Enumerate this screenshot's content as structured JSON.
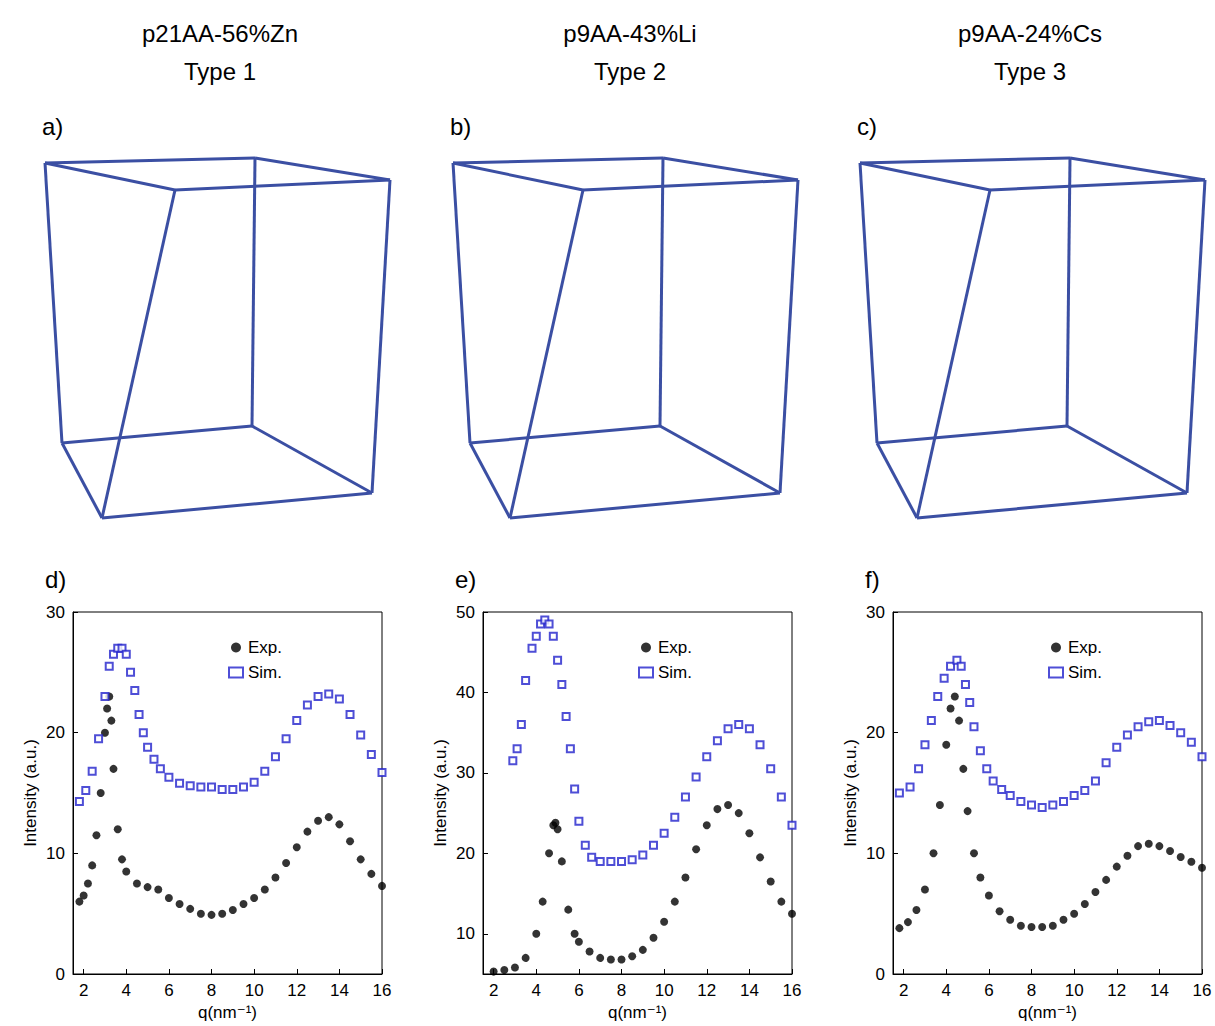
{
  "panels": [
    {
      "label": "a)",
      "title": "p21AA-56%Zn",
      "subtitle": "Type 1"
    },
    {
      "label": "b)",
      "title": "p9AA-43%Li",
      "subtitle": "Type 2"
    },
    {
      "label": "c)",
      "title": "p9AA-24%Cs",
      "subtitle": "Type 3"
    }
  ],
  "chart_data": [
    {
      "type": "scatter",
      "panel": "d)",
      "xlabel": "q(nm⁻¹)",
      "ylabel": "Intensity (a.u.)",
      "xlim": [
        1.5,
        16
      ],
      "xticks": [
        2,
        4,
        6,
        8,
        10,
        12,
        14,
        16
      ],
      "ylim": [
        0,
        30
      ],
      "yticks": [
        0,
        10,
        20,
        30
      ],
      "legend": "top right",
      "series": [
        {
          "name": "Exp.",
          "color": "#000000",
          "marker": "filled circle",
          "x": [
            1.8,
            2.0,
            2.2,
            2.4,
            2.6,
            2.8,
            3.0,
            3.1,
            3.2,
            3.3,
            3.4,
            3.6,
            3.8,
            4.0,
            4.5,
            5.0,
            5.5,
            6.0,
            6.5,
            7.0,
            7.5,
            8.0,
            8.5,
            9.0,
            9.5,
            10,
            10.5,
            11,
            11.5,
            12,
            12.5,
            13,
            13.5,
            14,
            14.5,
            15,
            15.5,
            16
          ],
          "values": [
            6.0,
            6.5,
            7.5,
            9.0,
            11.5,
            15,
            20,
            22,
            23,
            21,
            17,
            12,
            9.5,
            8.5,
            7.5,
            7.2,
            7.0,
            6.3,
            5.8,
            5.4,
            5.0,
            4.9,
            5.0,
            5.3,
            5.8,
            6.3,
            7.0,
            8.0,
            9.2,
            10.5,
            11.8,
            12.7,
            13.0,
            12.4,
            11.0,
            9.5,
            8.3,
            7.3
          ]
        },
        {
          "name": "Sim.",
          "color": "#2222cc",
          "marker": "open square",
          "x": [
            1.8,
            2.1,
            2.4,
            2.7,
            3.0,
            3.2,
            3.4,
            3.6,
            3.8,
            4.0,
            4.2,
            4.4,
            4.6,
            4.8,
            5.0,
            5.3,
            5.6,
            6.0,
            6.5,
            7,
            7.5,
            8,
            8.5,
            9,
            9.5,
            10,
            10.5,
            11,
            11.5,
            12,
            12.5,
            13,
            13.5,
            14,
            14.5,
            15,
            15.5,
            16
          ],
          "values": [
            14.3,
            15.2,
            16.8,
            19.5,
            23,
            25.5,
            26.5,
            27,
            27,
            26.5,
            25,
            23.5,
            21.5,
            20,
            18.8,
            17.8,
            17,
            16.3,
            15.8,
            15.6,
            15.5,
            15.5,
            15.3,
            15.3,
            15.5,
            15.9,
            16.8,
            18,
            19.5,
            21,
            22.3,
            23,
            23.2,
            22.8,
            21.5,
            19.8,
            18.2,
            16.7
          ]
        }
      ]
    },
    {
      "type": "scatter",
      "panel": "e)",
      "xlabel": "q(nm⁻¹)",
      "ylabel": "Intensity (a.u.)",
      "xlim": [
        1.5,
        16
      ],
      "xticks": [
        2,
        4,
        6,
        8,
        10,
        12,
        14,
        16
      ],
      "ylim": [
        5,
        50
      ],
      "yticks": [
        10,
        20,
        30,
        40,
        50
      ],
      "legend": "top right",
      "series": [
        {
          "name": "Exp.",
          "color": "#000000",
          "marker": "filled circle",
          "x": [
            2.0,
            2.5,
            3.0,
            3.5,
            4.0,
            4.3,
            4.6,
            4.8,
            4.9,
            5.0,
            5.2,
            5.5,
            5.8,
            6.0,
            6.5,
            7,
            7.5,
            8,
            8.5,
            9,
            9.5,
            10,
            10.5,
            11,
            11.5,
            12,
            12.5,
            13,
            13.5,
            14,
            14.5,
            15,
            15.5,
            16
          ],
          "values": [
            5.3,
            5.5,
            5.8,
            7,
            10,
            14,
            20,
            23.5,
            23.8,
            23,
            19,
            13,
            10,
            9,
            7.8,
            7.0,
            6.8,
            6.8,
            7.2,
            8,
            9.5,
            11.5,
            14,
            17,
            20.5,
            23.5,
            25.5,
            26,
            25,
            22.5,
            19.5,
            16.5,
            14,
            12.5
          ]
        },
        {
          "name": "Sim.",
          "color": "#2222cc",
          "marker": "open square",
          "x": [
            2.9,
            3.1,
            3.3,
            3.5,
            3.8,
            4.0,
            4.2,
            4.4,
            4.6,
            4.8,
            5.0,
            5.2,
            5.4,
            5.6,
            5.8,
            6.0,
            6.3,
            6.6,
            7,
            7.5,
            8,
            8.5,
            9,
            9.5,
            10,
            10.5,
            11,
            11.5,
            12,
            12.5,
            13,
            13.5,
            14,
            14.5,
            15,
            15.5,
            16
          ],
          "values": [
            31.5,
            33,
            36,
            41.5,
            45.5,
            47,
            48.5,
            49,
            48.5,
            47,
            44,
            41,
            37,
            33,
            28,
            24,
            21,
            19.5,
            19,
            19,
            19,
            19.2,
            19.8,
            21,
            22.5,
            24.5,
            27,
            29.5,
            32,
            34,
            35.5,
            36,
            35.5,
            33.5,
            30.5,
            27,
            23.5
          ]
        }
      ]
    },
    {
      "type": "scatter",
      "panel": "f)",
      "xlabel": "q(nm⁻¹)",
      "ylabel": "Intensity (a.u.)",
      "xlim": [
        1.5,
        16
      ],
      "xticks": [
        2,
        4,
        6,
        8,
        10,
        12,
        14,
        16
      ],
      "ylim": [
        0,
        30
      ],
      "yticks": [
        0,
        10,
        20,
        30
      ],
      "legend": "top right",
      "series": [
        {
          "name": "Exp.",
          "color": "#000000",
          "marker": "filled circle",
          "x": [
            1.8,
            2.2,
            2.6,
            3.0,
            3.4,
            3.7,
            4.0,
            4.2,
            4.4,
            4.6,
            4.8,
            5.0,
            5.3,
            5.6,
            6.0,
            6.5,
            7,
            7.5,
            8,
            8.5,
            9,
            9.5,
            10,
            10.5,
            11,
            11.5,
            12,
            12.5,
            13,
            13.5,
            14,
            14.5,
            15,
            15.5,
            16
          ],
          "values": [
            3.8,
            4.3,
            5.3,
            7,
            10,
            14,
            19,
            22,
            23,
            21,
            17,
            13.5,
            10,
            8,
            6.5,
            5.2,
            4.5,
            4.0,
            3.9,
            3.9,
            4.0,
            4.5,
            5.0,
            5.8,
            6.8,
            7.8,
            8.9,
            9.8,
            10.6,
            10.8,
            10.6,
            10.2,
            9.7,
            9.3,
            8.8
          ]
        },
        {
          "name": "Sim.",
          "color": "#2222cc",
          "marker": "open square",
          "x": [
            1.8,
            2.3,
            2.7,
            3.0,
            3.3,
            3.6,
            3.9,
            4.2,
            4.5,
            4.7,
            4.9,
            5.1,
            5.3,
            5.6,
            5.9,
            6.2,
            6.6,
            7,
            7.5,
            8,
            8.5,
            9,
            9.5,
            10,
            10.5,
            11,
            11.5,
            12,
            12.5,
            13,
            13.5,
            14,
            14.5,
            15,
            15.5,
            16
          ],
          "values": [
            15,
            15.5,
            17,
            19,
            21,
            23,
            24.5,
            25.5,
            26,
            25.5,
            24,
            22.5,
            20.5,
            18.5,
            17,
            16,
            15.3,
            14.8,
            14.3,
            14,
            13.8,
            14,
            14.3,
            14.8,
            15.2,
            16,
            17.5,
            18.8,
            19.8,
            20.5,
            20.9,
            21,
            20.6,
            20,
            19.2,
            18
          ]
        }
      ]
    }
  ]
}
